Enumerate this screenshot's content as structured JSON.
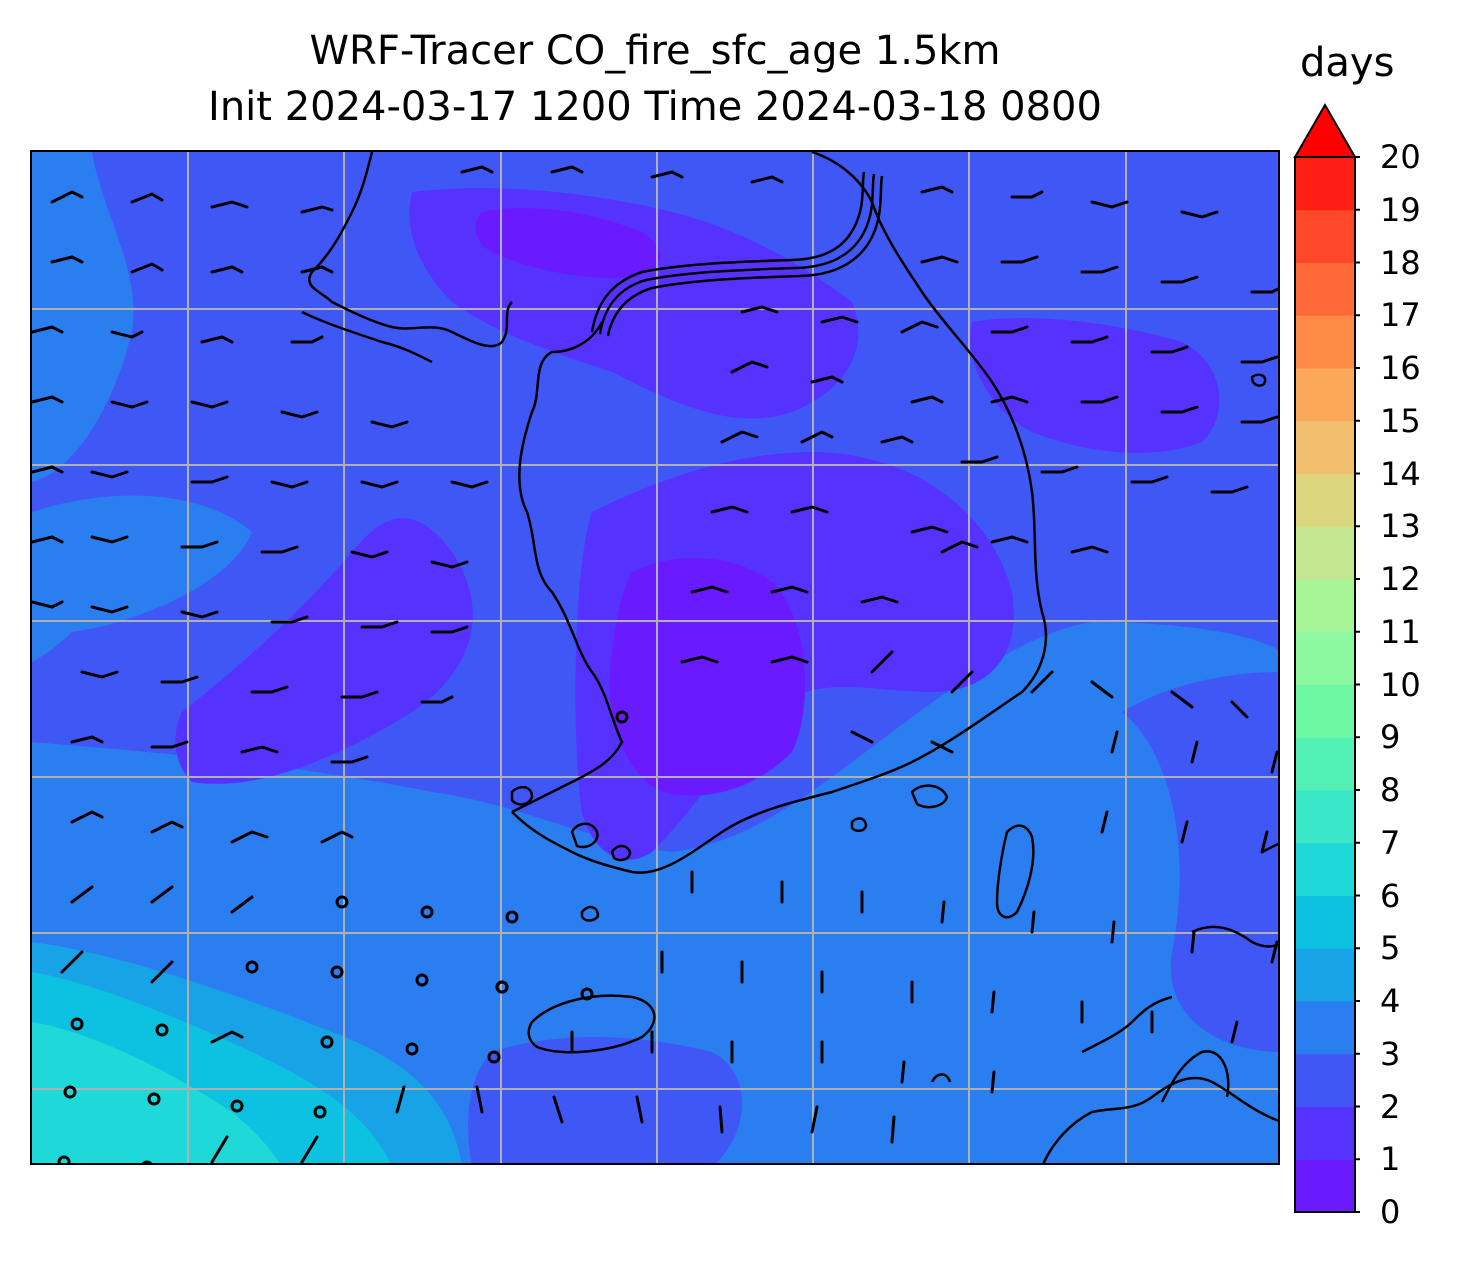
{
  "title": {
    "line1": "WRF-Tracer CO_fire_sfc_age 1.5km",
    "line2": "Init 2024-03-17 1200 Time 2024-03-18 0800"
  },
  "colorbar": {
    "label": "days",
    "ticks": [
      "0",
      "1",
      "2",
      "3",
      "4",
      "5",
      "6",
      "7",
      "8",
      "9",
      "10",
      "11",
      "12",
      "13",
      "14",
      "15",
      "16",
      "17",
      "18",
      "19",
      "20"
    ],
    "extend": "max",
    "levels": [
      {
        "from": 0,
        "to": 1,
        "color": "#6a1aff"
      },
      {
        "from": 1,
        "to": 2,
        "color": "#5632ff"
      },
      {
        "from": 2,
        "to": 3,
        "color": "#3f57f5"
      },
      {
        "from": 3,
        "to": 4,
        "color": "#2a7ef0"
      },
      {
        "from": 4,
        "to": 5,
        "color": "#17a3e6"
      },
      {
        "from": 5,
        "to": 6,
        "color": "#0cc2e0"
      },
      {
        "from": 6,
        "to": 7,
        "color": "#1fd8d8"
      },
      {
        "from": 7,
        "to": 8,
        "color": "#3ae8c8"
      },
      {
        "from": 8,
        "to": 9,
        "color": "#52f0b4"
      },
      {
        "from": 9,
        "to": 10,
        "color": "#6ff8a2"
      },
      {
        "from": 10,
        "to": 11,
        "color": "#8cf8a0"
      },
      {
        "from": 11,
        "to": 12,
        "color": "#a8f598"
      },
      {
        "from": 12,
        "to": 13,
        "color": "#c5e690"
      },
      {
        "from": 13,
        "to": 14,
        "color": "#dcd67e"
      },
      {
        "from": 14,
        "to": 15,
        "color": "#f0c070"
      },
      {
        "from": 15,
        "to": 16,
        "color": "#fca85a"
      },
      {
        "from": 16,
        "to": 17,
        "color": "#ff8a48"
      },
      {
        "from": 17,
        "to": 18,
        "color": "#ff6a38"
      },
      {
        "from": 18,
        "to": 19,
        "color": "#ff4828"
      },
      {
        "from": 19,
        "to": 20,
        "color": "#ff1e14"
      }
    ],
    "over_color": "#ff0000"
  },
  "map": {
    "background_level_days": "2-3",
    "gridlines": true,
    "gridline_color": "#b0b0b0",
    "coastline_color": "#000000",
    "wind_barb_color": "#000000"
  }
}
